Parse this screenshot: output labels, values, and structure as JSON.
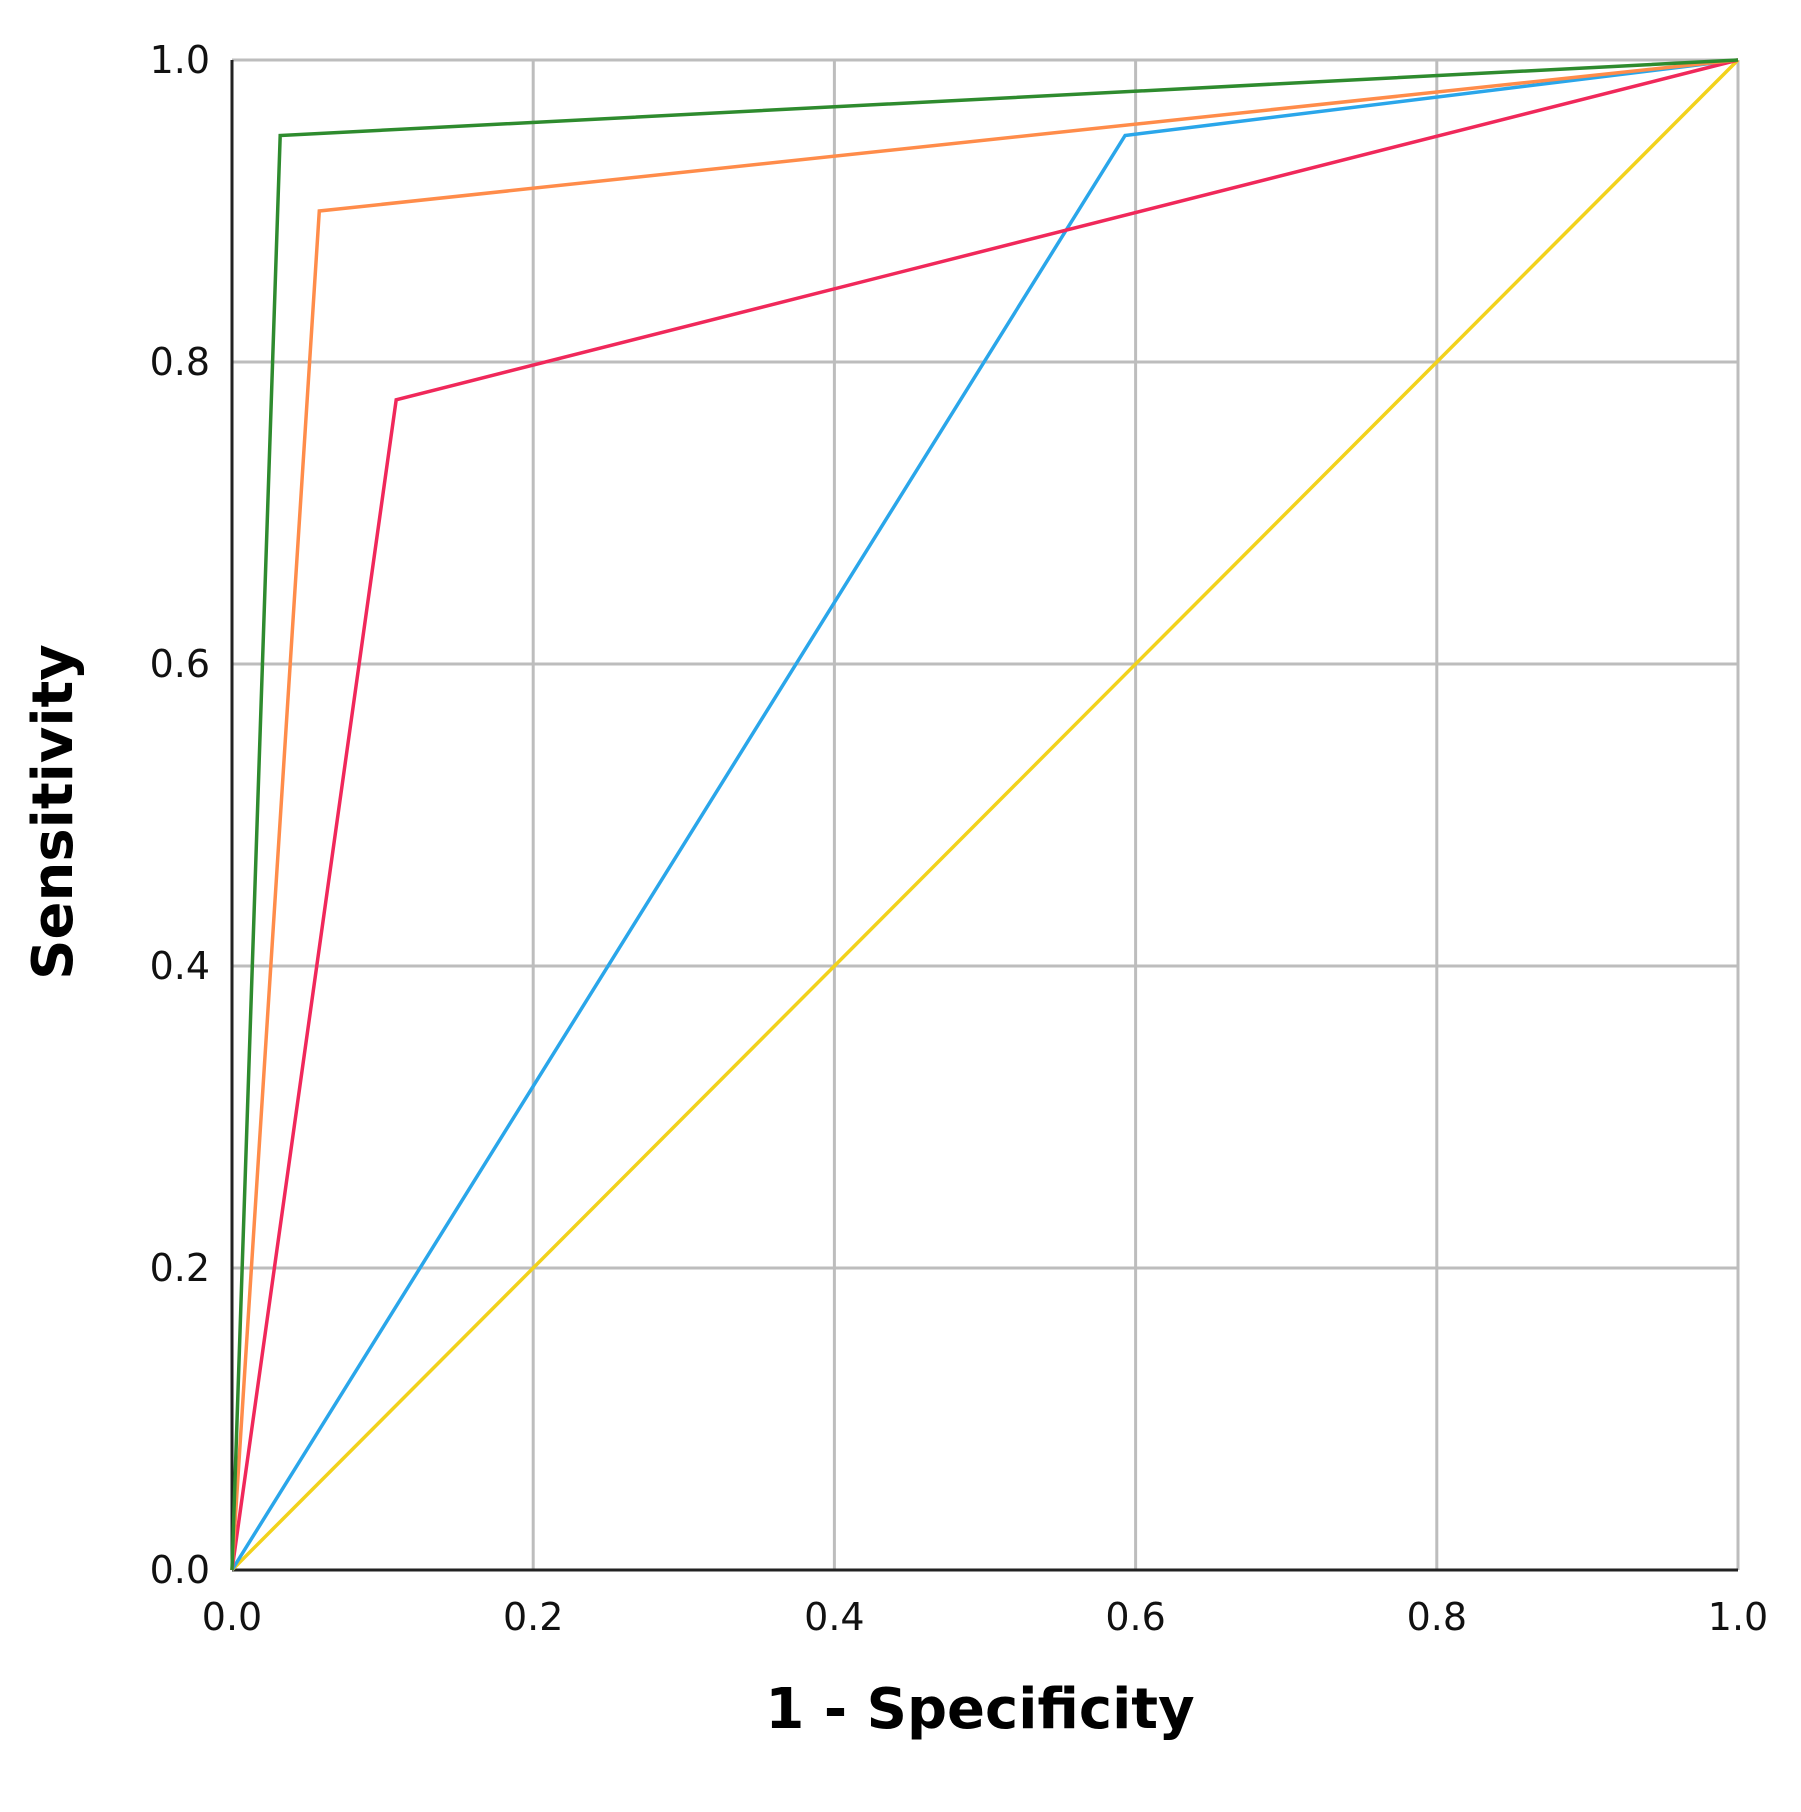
{
  "chart_data": {
    "type": "line",
    "title": "",
    "xlabel": "1 - Specificity",
    "ylabel": "Sensitivity",
    "xlim": [
      0,
      1
    ],
    "ylim": [
      0,
      1
    ],
    "x_ticks": [
      "0.0",
      "0.2",
      "0.4",
      "0.6",
      "0.8",
      "1.0"
    ],
    "y_ticks": [
      "0.0",
      "0.2",
      "0.4",
      "0.6",
      "0.8",
      "1.0"
    ],
    "grid": true,
    "legend": "none",
    "series": [
      {
        "color": "#2e8b2e",
        "points": [
          [
            0,
            0
          ],
          [
            0.032,
            0.95
          ],
          [
            1,
            1
          ]
        ]
      },
      {
        "color": "#ff8c4a",
        "points": [
          [
            0,
            0
          ],
          [
            0.058,
            0.9
          ],
          [
            1,
            1
          ]
        ]
      },
      {
        "color": "#f0285a",
        "points": [
          [
            0,
            0
          ],
          [
            0.109,
            0.775
          ],
          [
            1,
            1
          ]
        ]
      },
      {
        "color": "#2aa6ea",
        "points": [
          [
            0,
            0
          ],
          [
            0.593,
            0.95
          ],
          [
            1,
            1
          ]
        ]
      },
      {
        "color": "#f2d21c",
        "points": [
          [
            0,
            0
          ],
          [
            1,
            1
          ]
        ]
      }
    ]
  }
}
